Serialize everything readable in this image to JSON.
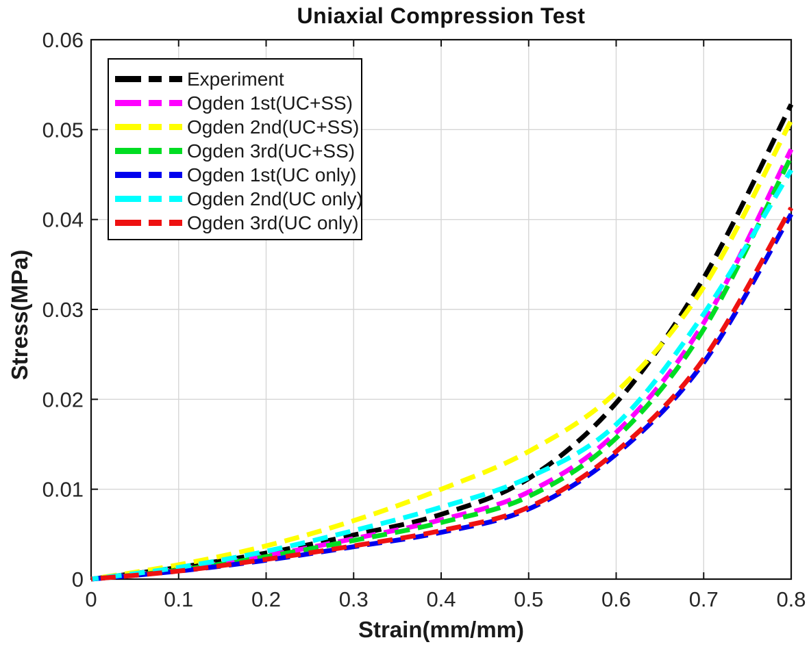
{
  "chart_data": {
    "type": "line",
    "title": "Uniaxial Compression Test",
    "xlabel": "Strain(mm/mm)",
    "ylabel": "Stress(MPa)",
    "xlim": [
      0,
      0.8
    ],
    "ylim": [
      0,
      0.06
    ],
    "grid": true,
    "legend_position": "top-left",
    "line_style": "dashed",
    "axis_color": "#111111",
    "tick_label_color": "#262626",
    "grid_color": "#d6d6d6",
    "background_color": "#ffffff",
    "x": [
      0,
      0.1,
      0.2,
      0.3,
      0.4,
      0.5,
      0.6,
      0.7,
      0.8
    ],
    "xtick_labels": [
      "0",
      "0.1",
      "0.2",
      "0.3",
      "0.4",
      "0.5",
      "0.6",
      "0.7",
      "0.8"
    ],
    "ytick_values": [
      0,
      0.01,
      0.02,
      0.03,
      0.04,
      0.05,
      0.06
    ],
    "ytick_labels": [
      "0",
      "0.01",
      "0.02",
      "0.03",
      "0.04",
      "0.05",
      "0.06"
    ],
    "series": [
      {
        "name": "Experiment",
        "color": "#000000",
        "values": [
          0,
          0.0013,
          0.0029,
          0.0049,
          0.0072,
          0.0112,
          0.0196,
          0.0335,
          0.0528
        ]
      },
      {
        "name": "Ogden 1st(UC+SS)",
        "color": "#ff00ff",
        "values": [
          0,
          0.0011,
          0.0026,
          0.0045,
          0.0066,
          0.0097,
          0.0163,
          0.0285,
          0.0478
        ]
      },
      {
        "name": "Ogden 2nd(UC+SS)",
        "color": "#ffff00",
        "values": [
          0,
          0.0016,
          0.0037,
          0.0065,
          0.01,
          0.0142,
          0.0208,
          0.0325,
          0.051
        ]
      },
      {
        "name": "Ogden 3rd(UC+SS)",
        "color": "#00dd22",
        "values": [
          0,
          0.001,
          0.0025,
          0.0043,
          0.0063,
          0.0092,
          0.0157,
          0.0278,
          0.047
        ]
      },
      {
        "name": "Ogden 1st(UC only)",
        "color": "#0000ee",
        "values": [
          0,
          0.0009,
          0.0021,
          0.0036,
          0.0052,
          0.0078,
          0.0139,
          0.0241,
          0.0406
        ]
      },
      {
        "name": "Ogden 2nd(UC only)",
        "color": "#00ffff",
        "values": [
          0,
          0.0013,
          0.0031,
          0.0054,
          0.008,
          0.0113,
          0.0172,
          0.0295,
          0.0455
        ]
      },
      {
        "name": "Ogden 3rd(UC only)",
        "color": "#ee1111",
        "values": [
          0,
          0.0009,
          0.0022,
          0.0037,
          0.0054,
          0.008,
          0.0142,
          0.0245,
          0.0413
        ]
      }
    ]
  }
}
